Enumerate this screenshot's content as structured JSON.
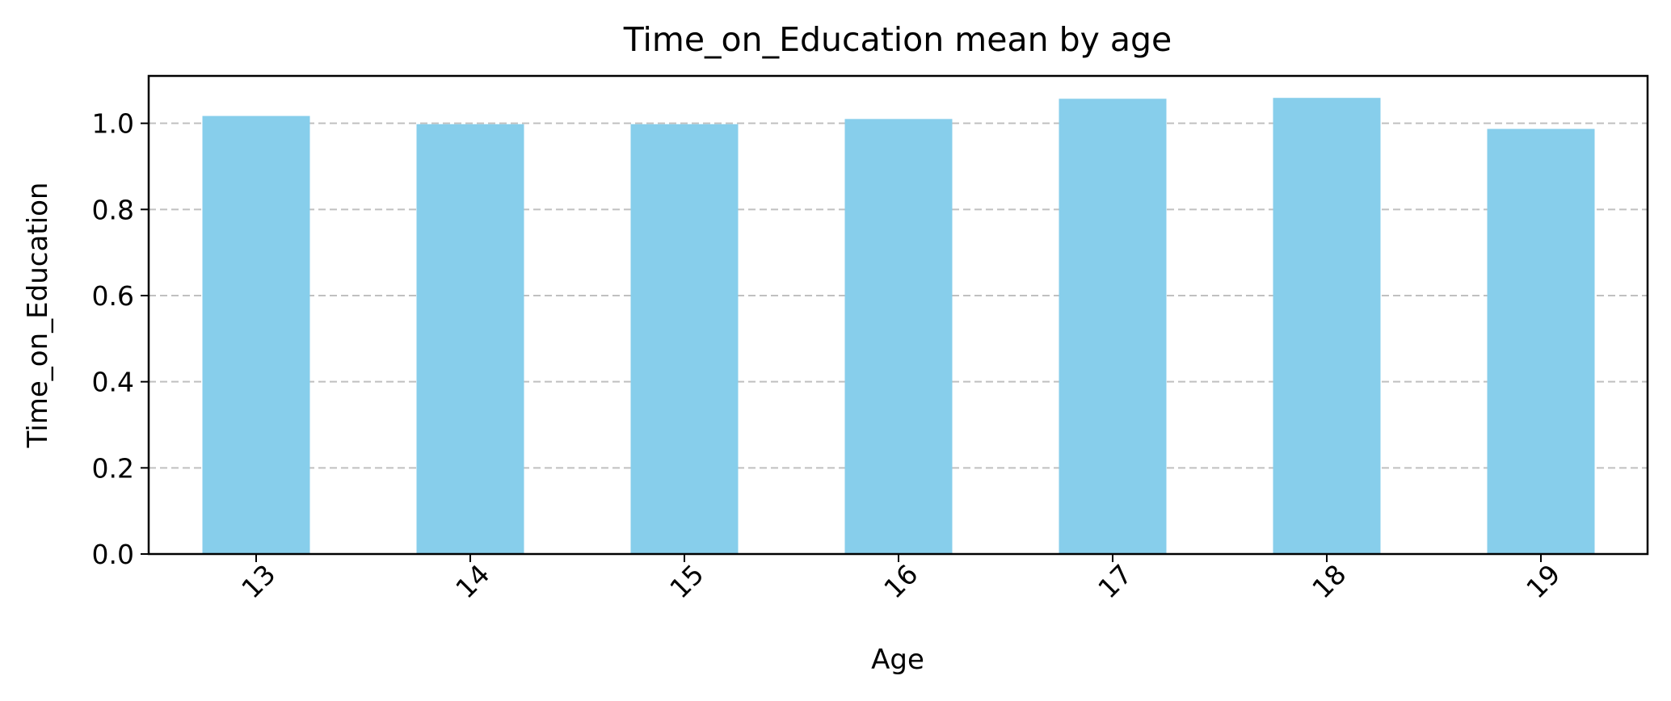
{
  "chart_data": {
    "type": "bar",
    "title": "Time_on_Education mean by age",
    "xlabel": "Age",
    "ylabel": "Time_on_Education",
    "categories": [
      "13",
      "14",
      "15",
      "16",
      "17",
      "18",
      "19"
    ],
    "values": [
      1.017,
      0.998,
      0.998,
      1.01,
      1.057,
      1.059,
      0.987
    ],
    "ylim": [
      0,
      1.11
    ],
    "yticks": [
      "0.0",
      "0.2",
      "0.4",
      "0.6",
      "0.8",
      "1.0"
    ],
    "grid": "y-dashed",
    "bar_color": "#87CEEB",
    "grid_color": "#c0c0c0"
  }
}
